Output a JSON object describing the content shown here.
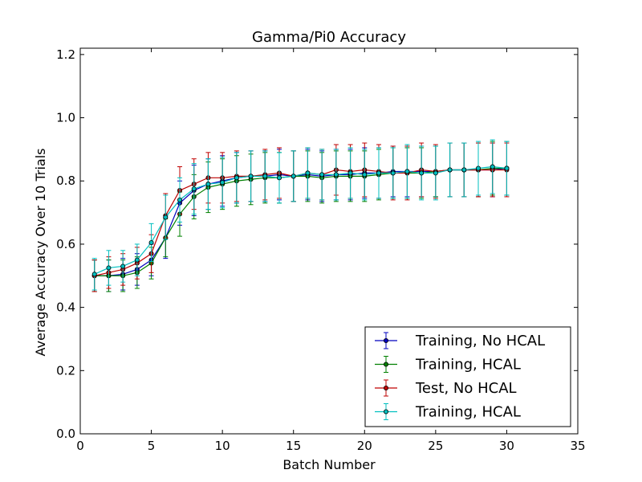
{
  "chart_data": {
    "type": "line",
    "title": "Gamma/Pi0 Accuracy",
    "xlabel": "Batch Number",
    "ylabel": "Average Accuracy Over 10 Trials",
    "xlim": [
      0,
      35
    ],
    "ylim": [
      0.0,
      1.22
    ],
    "xticks": [
      0,
      5,
      10,
      15,
      20,
      25,
      30,
      35
    ],
    "yticks": [
      0.0,
      0.2,
      0.4,
      0.6,
      0.8,
      1.0,
      1.2
    ],
    "xtick_labels": [
      "0",
      "5",
      "10",
      "15",
      "20",
      "25",
      "30",
      "35"
    ],
    "ytick_labels": [
      "0.0",
      "0.2",
      "0.4",
      "0.6",
      "0.8",
      "1.0",
      "1.2"
    ],
    "legend_position": "bottom-right",
    "x": [
      1,
      2,
      3,
      4,
      5,
      6,
      7,
      8,
      9,
      10,
      11,
      12,
      13,
      14,
      15,
      16,
      17,
      18,
      19,
      20,
      21,
      22,
      23,
      24,
      25,
      26,
      27,
      28,
      29,
      30
    ],
    "series": [
      {
        "name": "Training, No HCAL",
        "color": "#0000bf",
        "values": [
          0.5,
          0.5,
          0.505,
          0.52,
          0.55,
          0.62,
          0.73,
          0.77,
          0.79,
          0.8,
          0.81,
          0.815,
          0.815,
          0.82,
          0.815,
          0.82,
          0.815,
          0.82,
          0.82,
          0.825,
          0.825,
          0.83,
          0.83,
          0.83,
          0.83,
          0.835,
          0.835,
          0.835,
          0.835,
          0.84
        ],
        "error": [
          0.05,
          0.05,
          0.05,
          0.05,
          0.05,
          0.065,
          0.07,
          0.08,
          0.08,
          0.08,
          0.08,
          0.08,
          0.08,
          0.08,
          0.08,
          0.08,
          0.08,
          0.08,
          0.08,
          0.08,
          0.08,
          0.08,
          0.08,
          0.08,
          0.08,
          0.085,
          0.085,
          0.085,
          0.085,
          0.085
        ]
      },
      {
        "name": "Training, HCAL",
        "color": "#008000",
        "values": [
          0.5,
          0.5,
          0.5,
          0.51,
          0.54,
          0.62,
          0.695,
          0.75,
          0.78,
          0.79,
          0.8,
          0.805,
          0.81,
          0.81,
          0.815,
          0.815,
          0.81,
          0.815,
          0.815,
          0.815,
          0.82,
          0.825,
          0.825,
          0.825,
          0.83,
          0.835,
          0.835,
          0.835,
          0.84,
          0.84
        ],
        "error": [
          0.05,
          0.05,
          0.05,
          0.05,
          0.05,
          0.06,
          0.07,
          0.07,
          0.08,
          0.08,
          0.08,
          0.08,
          0.08,
          0.08,
          0.08,
          0.08,
          0.08,
          0.08,
          0.08,
          0.08,
          0.08,
          0.08,
          0.08,
          0.08,
          0.08,
          0.085,
          0.085,
          0.085,
          0.085,
          0.085
        ]
      },
      {
        "name": "Test, No HCAL",
        "color": "#bf0000",
        "values": [
          0.5,
          0.51,
          0.52,
          0.54,
          0.57,
          0.69,
          0.77,
          0.79,
          0.81,
          0.81,
          0.815,
          0.815,
          0.82,
          0.825,
          0.815,
          0.825,
          0.82,
          0.835,
          0.83,
          0.835,
          0.83,
          0.825,
          0.825,
          0.835,
          0.83,
          0.835,
          0.835,
          0.835,
          0.835,
          0.835
        ],
        "error": [
          0.05,
          0.05,
          0.05,
          0.05,
          0.06,
          0.07,
          0.075,
          0.08,
          0.08,
          0.08,
          0.08,
          0.08,
          0.08,
          0.08,
          0.08,
          0.08,
          0.08,
          0.08,
          0.085,
          0.085,
          0.085,
          0.085,
          0.085,
          0.085,
          0.085,
          0.085,
          0.085,
          0.085,
          0.085,
          0.085
        ]
      },
      {
        "name": "Training, HCAL",
        "color": "#00bfbf",
        "values": [
          0.505,
          0.525,
          0.53,
          0.55,
          0.605,
          0.685,
          0.74,
          0.775,
          0.79,
          0.795,
          0.81,
          0.815,
          0.815,
          0.81,
          0.815,
          0.825,
          0.82,
          0.82,
          0.825,
          0.82,
          0.825,
          0.825,
          0.83,
          0.825,
          0.825,
          0.835,
          0.835,
          0.84,
          0.845,
          0.84
        ],
        "error": [
          0.05,
          0.055,
          0.05,
          0.05,
          0.06,
          0.07,
          0.07,
          0.08,
          0.08,
          0.08,
          0.08,
          0.08,
          0.08,
          0.08,
          0.08,
          0.08,
          0.08,
          0.08,
          0.08,
          0.08,
          0.08,
          0.08,
          0.085,
          0.085,
          0.085,
          0.085,
          0.085,
          0.085,
          0.085,
          0.085
        ]
      }
    ]
  }
}
